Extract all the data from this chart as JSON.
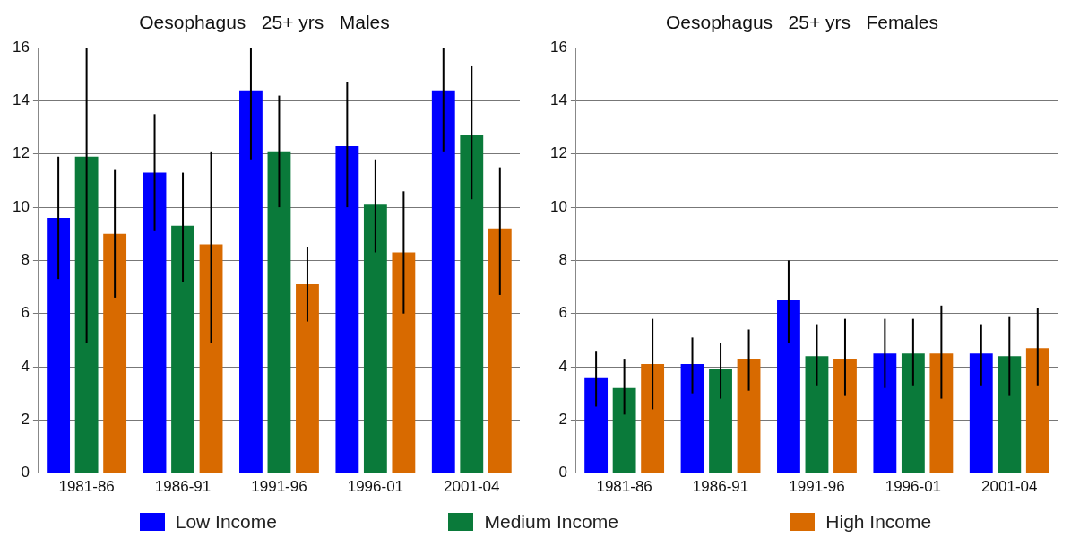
{
  "chart_data": [
    {
      "type": "bar",
      "title": "Oesophagus   25+ yrs   Males",
      "categories": [
        "1981-86",
        "1986-91",
        "1991-96",
        "1996-01",
        "2001-04"
      ],
      "series": [
        {
          "name": "Low Income",
          "color": "#0000ff",
          "values": [
            9.6,
            11.3,
            14.4,
            12.3,
            14.4
          ],
          "errors": [
            [
              7.3,
              11.9
            ],
            [
              9.1,
              13.5
            ],
            [
              11.8,
              16
            ],
            [
              10,
              14.7
            ],
            [
              12.1,
              16
            ]
          ]
        },
        {
          "name": "Medium Income",
          "color": "#0a7a3a",
          "values": [
            11.9,
            9.3,
            12.1,
            10.1,
            12.7
          ],
          "errors": [
            [
              4.9,
              16
            ],
            [
              7.2,
              11.3
            ],
            [
              10,
              14.2
            ],
            [
              8.3,
              11.8
            ],
            [
              10.3,
              15.3
            ]
          ]
        },
        {
          "name": "High Income",
          "color": "#d86a00",
          "values": [
            9.0,
            8.6,
            7.1,
            8.3,
            9.2
          ],
          "errors": [
            [
              6.6,
              11.4
            ],
            [
              4.9,
              12.1
            ],
            [
              5.7,
              8.5
            ],
            [
              6,
              10.6
            ],
            [
              6.7,
              11.5
            ]
          ]
        }
      ],
      "ylim": [
        0,
        16
      ],
      "yticks": [
        0,
        2,
        4,
        6,
        8,
        10,
        12,
        14,
        16
      ],
      "grid": "y",
      "legend": "bottom"
    },
    {
      "type": "bar",
      "title": "Oesophagus   25+ yrs   Females",
      "categories": [
        "1981-86",
        "1986-91",
        "1991-96",
        "1996-01",
        "2001-04"
      ],
      "series": [
        {
          "color": "#0000ff",
          "values": [
            3.6,
            4.1,
            6.5,
            4.5,
            4.5
          ],
          "errors": [
            [
              2.5,
              4.6
            ],
            [
              3,
              5.1
            ],
            [
              4.9,
              8
            ],
            [
              3.2,
              5.8
            ],
            [
              3.3,
              5.6
            ]
          ]
        },
        {
          "color": "#0a7a3a",
          "values": [
            3.2,
            3.9,
            4.4,
            4.5,
            4.4
          ],
          "errors": [
            [
              2.2,
              4.3
            ],
            [
              2.8,
              4.9
            ],
            [
              3.3,
              5.6
            ],
            [
              3.3,
              5.8
            ],
            [
              2.9,
              5.9
            ]
          ]
        },
        {
          "color": "#d86a00",
          "values": [
            4.1,
            4.3,
            4.3,
            4.5,
            4.7
          ],
          "errors": [
            [
              2.4,
              5.8
            ],
            [
              3.1,
              5.4
            ],
            [
              2.9,
              5.8
            ],
            [
              2.8,
              6.3
            ],
            [
              3.3,
              6.2
            ]
          ]
        }
      ],
      "ylim": [
        0,
        16
      ],
      "yticks": [
        0,
        2,
        4,
        6,
        8,
        10,
        12,
        14,
        16
      ],
      "grid": "y"
    }
  ]
}
